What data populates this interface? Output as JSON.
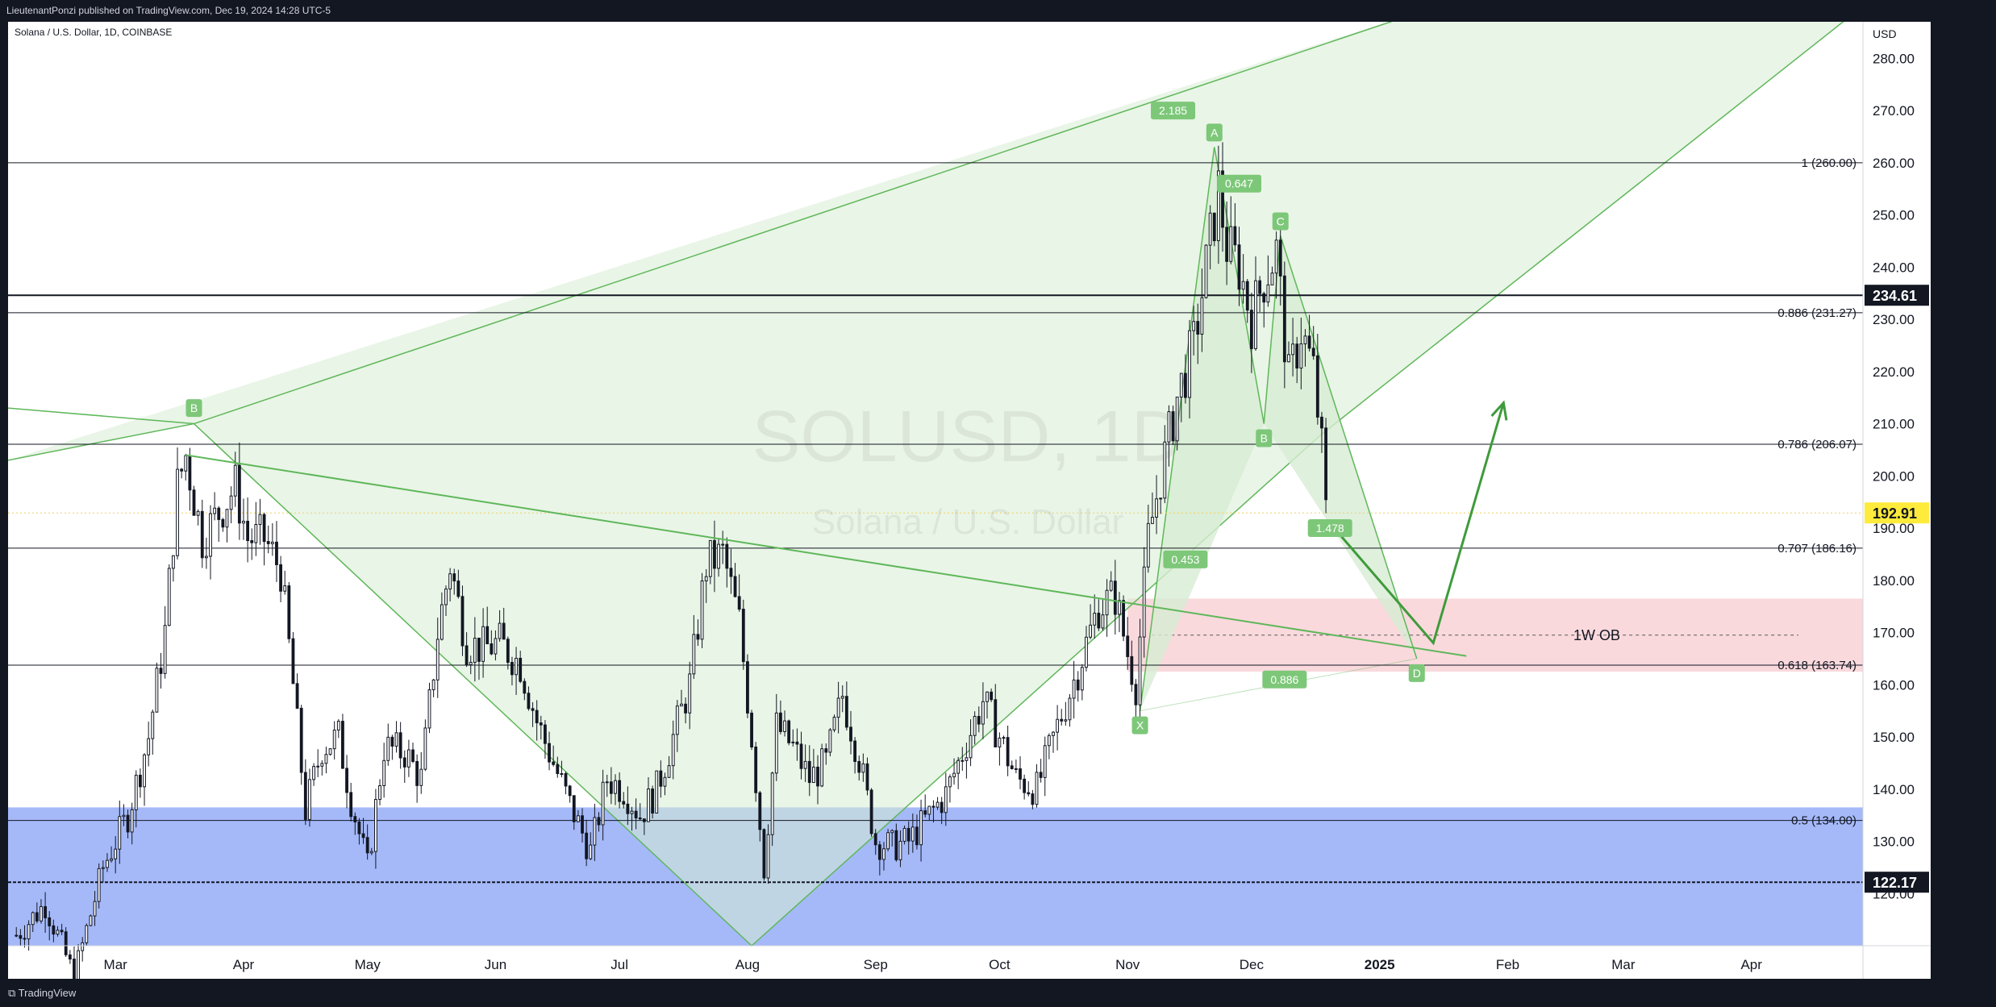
{
  "header": {
    "published": "LieutenantPonzi published on TradingView.com, Dec 19, 2024 14:28 UTC-5"
  },
  "symbol": {
    "label": "Solana / U.S. Dollar, 1D, COINBASE",
    "watermark_ticker": "SOLUSD, 1D",
    "watermark_name": "Solana / U.S. Dollar"
  },
  "footer": {
    "brand": "TradingView"
  },
  "colors": {
    "pattern_fill": "#d7ecd3",
    "pattern_line": "#5fb75a",
    "ob_zone": "#f8c9cf",
    "demand_zone": "#8ea8f7",
    "arrow": "#3f9b3b",
    "candle": "#131722",
    "price_tag": "#ffeb3b"
  },
  "chart_data": {
    "type": "candlestick",
    "title": "",
    "currency": "USD",
    "ylim": [
      110,
      287
    ],
    "y_ticks": [
      120,
      130,
      140,
      150,
      160,
      170,
      180,
      190,
      200,
      210,
      220,
      230,
      240,
      250,
      260,
      270,
      280
    ],
    "x_range": [
      "2024-02-04",
      "2025-04-28"
    ],
    "x_ticks": [
      {
        "label": "Mar",
        "date": "2024-03-01"
      },
      {
        "label": "Apr",
        "date": "2024-04-01"
      },
      {
        "label": "May",
        "date": "2024-05-01"
      },
      {
        "label": "Jun",
        "date": "2024-06-01"
      },
      {
        "label": "Jul",
        "date": "2024-07-01"
      },
      {
        "label": "Aug",
        "date": "2024-08-01"
      },
      {
        "label": "Sep",
        "date": "2024-09-01"
      },
      {
        "label": "Oct",
        "date": "2024-10-01"
      },
      {
        "label": "Nov",
        "date": "2024-11-01"
      },
      {
        "label": "Dec",
        "date": "2024-12-01"
      },
      {
        "label": "2025",
        "date": "2025-01-01"
      },
      {
        "label": "Feb",
        "date": "2025-02-01"
      },
      {
        "label": "Mar",
        "date": "2025-03-01"
      },
      {
        "label": "Apr",
        "date": "2025-04-01"
      }
    ],
    "price_path": [
      [
        "2024-02-06",
        112
      ],
      [
        "2024-02-13",
        118
      ],
      [
        "2024-02-20",
        104
      ],
      [
        "2024-02-27",
        125
      ],
      [
        "2024-03-04",
        135
      ],
      [
        "2024-03-09",
        150
      ],
      [
        "2024-03-13",
        170
      ],
      [
        "2024-03-16",
        198
      ],
      [
        "2024-03-18",
        204
      ],
      [
        "2024-03-22",
        188
      ],
      [
        "2024-03-26",
        193
      ],
      [
        "2024-03-30",
        198
      ],
      [
        "2024-04-02",
        188
      ],
      [
        "2024-04-06",
        188
      ],
      [
        "2024-04-10",
        182
      ],
      [
        "2024-04-13",
        160
      ],
      [
        "2024-04-16",
        136
      ],
      [
        "2024-04-20",
        148
      ],
      [
        "2024-04-24",
        150
      ],
      [
        "2024-04-27",
        138
      ],
      [
        "2024-05-01",
        125
      ],
      [
        "2024-05-05",
        148
      ],
      [
        "2024-05-10",
        147
      ],
      [
        "2024-05-14",
        142
      ],
      [
        "2024-05-18",
        170
      ],
      [
        "2024-05-21",
        183
      ],
      [
        "2024-05-25",
        168
      ],
      [
        "2024-05-29",
        167
      ],
      [
        "2024-06-02",
        168
      ],
      [
        "2024-06-07",
        164
      ],
      [
        "2024-06-11",
        153
      ],
      [
        "2024-06-15",
        145
      ],
      [
        "2024-06-19",
        137
      ],
      [
        "2024-06-24",
        128
      ],
      [
        "2024-06-28",
        142
      ],
      [
        "2024-07-02",
        140
      ],
      [
        "2024-07-06",
        135
      ],
      [
        "2024-07-10",
        140
      ],
      [
        "2024-07-14",
        150
      ],
      [
        "2024-07-18",
        160
      ],
      [
        "2024-07-22",
        183
      ],
      [
        "2024-07-26",
        185
      ],
      [
        "2024-07-30",
        172
      ],
      [
        "2024-08-02",
        150
      ],
      [
        "2024-08-05",
        125
      ],
      [
        "2024-08-08",
        152
      ],
      [
        "2024-08-12",
        148
      ],
      [
        "2024-08-16",
        142
      ],
      [
        "2024-08-20",
        145
      ],
      [
        "2024-08-24",
        158
      ],
      [
        "2024-08-28",
        146
      ],
      [
        "2024-09-01",
        130
      ],
      [
        "2024-09-05",
        129
      ],
      [
        "2024-09-09",
        130
      ],
      [
        "2024-09-14",
        135
      ],
      [
        "2024-09-18",
        139
      ],
      [
        "2024-09-22",
        147
      ],
      [
        "2024-09-27",
        157
      ],
      [
        "2024-10-01",
        150
      ],
      [
        "2024-10-05",
        142
      ],
      [
        "2024-10-10",
        140
      ],
      [
        "2024-10-15",
        152
      ],
      [
        "2024-10-20",
        163
      ],
      [
        "2024-10-25",
        175
      ],
      [
        "2024-10-29",
        177
      ],
      [
        "2024-11-01",
        166
      ],
      [
        "2024-11-03",
        160
      ],
      [
        "2024-11-06",
        188
      ],
      [
        "2024-11-09",
        200
      ],
      [
        "2024-11-13",
        215
      ],
      [
        "2024-11-17",
        225
      ],
      [
        "2024-11-20",
        240
      ],
      [
        "2024-11-23",
        255
      ],
      [
        "2024-11-25",
        244
      ],
      [
        "2024-11-28",
        240
      ],
      [
        "2024-12-01",
        230
      ],
      [
        "2024-12-04",
        238
      ],
      [
        "2024-12-07",
        243
      ],
      [
        "2024-12-10",
        218
      ],
      [
        "2024-12-13",
        228
      ],
      [
        "2024-12-16",
        220
      ],
      [
        "2024-12-18",
        205
      ],
      [
        "2024-12-19",
        192.91
      ]
    ],
    "horizontal_levels": [
      {
        "label": "1 (260.00)",
        "value": 260
      },
      {
        "label": "0.886 (231.27)",
        "value": 231.27
      },
      {
        "label": "0.786 (206.07)",
        "value": 206.07
      },
      {
        "label": "0.707 (186.16)",
        "value": 186.16
      },
      {
        "label": "0.618 (163.74)",
        "value": 163.74
      },
      {
        "label": "0.5 (134.00)",
        "value": 134
      }
    ],
    "price_tags": [
      {
        "label": "234.61",
        "value": 234.61,
        "style": "dark"
      },
      {
        "label": "192.91",
        "value": 192.91,
        "style": "yellow"
      },
      {
        "label": "122.17",
        "value": 122.17,
        "style": "dark"
      }
    ],
    "zones": [
      {
        "label": "1W OB",
        "from": "2024-11-01",
        "to": "2025-04-28",
        "low": 162.5,
        "high": 176.5,
        "mid": 169.5
      },
      {
        "label": "",
        "from": "2024-02-04",
        "to": "2025-04-28",
        "low": 110,
        "high": 136.5
      }
    ],
    "harmonic_right": {
      "points": [
        {
          "label": "X",
          "date": "2024-11-04",
          "value": 155
        },
        {
          "label": "A",
          "date": "2024-11-22",
          "value": 263
        },
        {
          "label": "B",
          "date": "2024-12-04",
          "value": 210
        },
        {
          "label": "C",
          "date": "2024-12-08",
          "value": 246
        },
        {
          "label": "D",
          "date": "2025-01-10",
          "value": 165
        }
      ],
      "ratios": [
        {
          "label": "2.185",
          "date": "2024-11-12",
          "value": 270
        },
        {
          "label": "0.647",
          "date": "2024-11-28",
          "value": 256
        },
        {
          "label": "0.453",
          "date": "2024-11-15",
          "value": 184
        },
        {
          "label": "1.478",
          "date": "2024-12-20",
          "value": 190
        },
        {
          "label": "0.886",
          "date": "2024-12-09",
          "value": 161
        }
      ]
    },
    "harmonic_left": {
      "b_label": {
        "label": "B",
        "date": "2024-03-20",
        "value": 213
      },
      "lines": [
        [
          [
            "2024-02-04",
            203
          ],
          [
            "2024-03-20",
            210
          ],
          [
            "2024-08-02",
            110
          ],
          [
            "2024-12-18",
            208
          ],
          [
            "2025-04-28",
            290
          ]
        ],
        [
          [
            "2024-02-04",
            213
          ],
          [
            "2024-03-20",
            210
          ]
        ],
        [
          [
            "2024-03-20",
            210
          ],
          [
            "2025-01-15",
            290
          ]
        ]
      ]
    },
    "trendline": [
      [
        "2024-03-18",
        204
      ],
      [
        "2025-01-22",
        165.5
      ]
    ],
    "projection": [
      [
        "2024-12-21",
        190
      ],
      [
        "2025-01-14",
        168
      ],
      [
        "2025-01-31",
        214
      ]
    ]
  }
}
